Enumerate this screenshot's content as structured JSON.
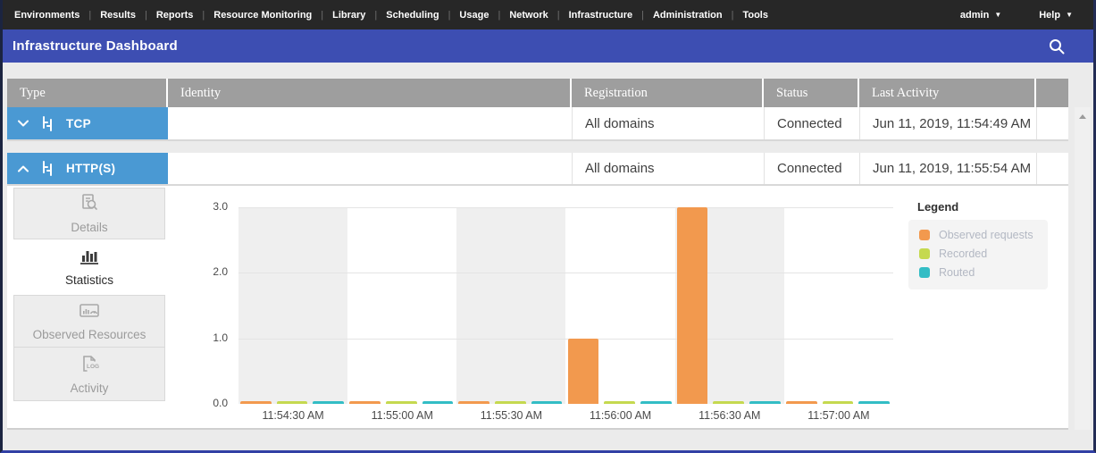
{
  "topnav": {
    "items": [
      "Environments",
      "Results",
      "Reports",
      "Resource Monitoring",
      "Library",
      "Scheduling",
      "Usage",
      "Network",
      "Infrastructure",
      "Administration",
      "Tools"
    ],
    "user_menu": "admin",
    "help_menu": "Help"
  },
  "header": {
    "title": "Infrastructure Dashboard"
  },
  "table": {
    "columns": [
      "Type",
      "Identity",
      "Registration",
      "Status",
      "Last Activity"
    ],
    "rows": [
      {
        "type": "TCP",
        "identity": "",
        "registration": "All domains",
        "status": "Connected",
        "last_activity": "Jun 11, 2019, 11:54:49 AM",
        "expanded": false
      },
      {
        "type": "HTTP(S)",
        "identity": "",
        "registration": "All domains",
        "status": "Connected",
        "last_activity": "Jun 11, 2019, 11:55:54 AM",
        "expanded": true
      }
    ]
  },
  "tabs": {
    "items": [
      {
        "label": "Details",
        "active": false
      },
      {
        "label": "Statistics",
        "active": true
      },
      {
        "label": "Observed Resources",
        "active": false
      },
      {
        "label": "Activity",
        "active": false
      }
    ]
  },
  "chart_data": {
    "type": "bar",
    "categories": [
      "11:54:30 AM",
      "11:55:00 AM",
      "11:55:30 AM",
      "11:56:00 AM",
      "11:56:30 AM",
      "11:57:00 AM"
    ],
    "series": [
      {
        "name": "Observed requests",
        "color": "#f2994e",
        "values": [
          0,
          0,
          0,
          1,
          3,
          0
        ]
      },
      {
        "name": "Recorded",
        "color": "#c5d94f",
        "values": [
          0,
          0,
          0,
          0,
          0,
          0
        ]
      },
      {
        "name": "Routed",
        "color": "#33bdc5",
        "values": [
          0,
          0,
          0,
          0,
          0,
          0
        ]
      }
    ],
    "title": "",
    "xlabel": "",
    "ylabel": "",
    "ylim": [
      0,
      3
    ],
    "yticks": [
      0,
      1,
      2,
      3
    ],
    "grid": "horizontal",
    "legend_title": "Legend",
    "legend_position": "right",
    "band_colors": [
      "#efefef",
      "#ffffff"
    ]
  }
}
